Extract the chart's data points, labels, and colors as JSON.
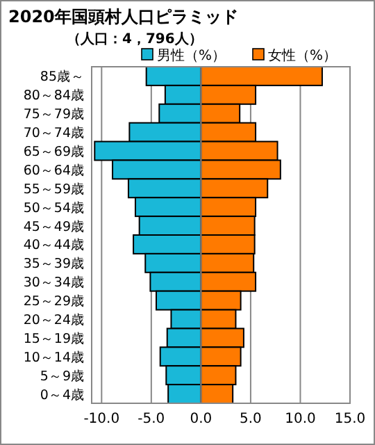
{
  "chart_data": {
    "type": "bar",
    "orientation": "horizontal",
    "stacked": true,
    "title": "2020年国頭村人口ピラミッド",
    "subtitle": "（人口：4，796人）",
    "categories": [
      "85歳～",
      "80～84歳",
      "75～79歳",
      "70～74歳",
      "65～69歳",
      "60～64歳",
      "55～59歳",
      "50～54歳",
      "45～49歳",
      "40～44歳",
      "35～39歳",
      "30～34歳",
      "25～29歳",
      "20～24歳",
      "15～19歳",
      "10～14歳",
      "5～9歳",
      "0～4歳"
    ],
    "series": [
      {
        "name": "男性（%）",
        "color": "#1ab8d8",
        "values": [
          -5.5,
          -3.6,
          -4.2,
          -7.2,
          -10.7,
          -8.9,
          -7.3,
          -6.6,
          -6.2,
          -6.8,
          -5.6,
          -5.1,
          -4.5,
          -3.0,
          -3.4,
          -4.1,
          -3.5,
          -3.3
        ]
      },
      {
        "name": "女性（%）",
        "color": "#ff7a00",
        "values": [
          12.2,
          5.5,
          3.9,
          5.5,
          7.7,
          8.0,
          6.7,
          5.5,
          5.4,
          5.4,
          5.3,
          5.5,
          4.0,
          3.5,
          4.3,
          4.0,
          3.5,
          3.2
        ]
      }
    ],
    "xlim": [
      -11,
      15
    ],
    "xticks": [
      {
        "value": -10,
        "label": "-10.0"
      },
      {
        "value": -5,
        "label": "-5.0"
      },
      {
        "value": 0,
        "label": "0.0"
      },
      {
        "value": 5,
        "label": "5.0"
      },
      {
        "value": 10,
        "label": "10.0"
      },
      {
        "value": 15,
        "label": "15.0"
      }
    ],
    "grid": "x",
    "legend": "top right"
  }
}
